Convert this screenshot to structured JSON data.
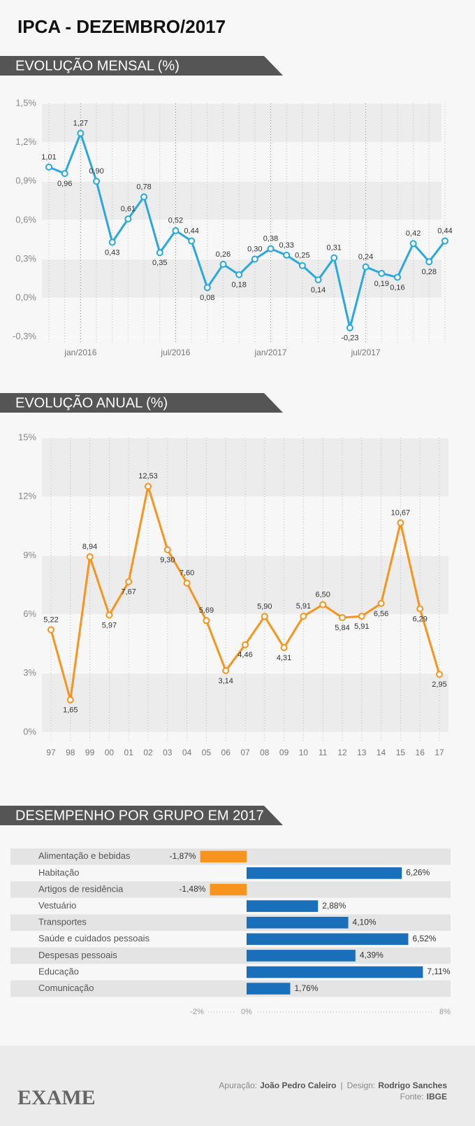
{
  "header": {
    "title": "IPCA - DEZEMBRO/2017"
  },
  "chart_data": [
    {
      "type": "line",
      "title": "EVOLUÇÃO MENSAL (%)",
      "categories": [
        null,
        null,
        "jan/2016",
        null,
        null,
        null,
        null,
        null,
        "jul/2016",
        null,
        null,
        null,
        null,
        null,
        "jan/2017",
        null,
        null,
        null,
        null,
        null,
        "jul/2017",
        null,
        null,
        null,
        null,
        null
      ],
      "values": [
        1.01,
        0.96,
        1.27,
        0.9,
        0.43,
        0.61,
        0.78,
        0.35,
        0.52,
        0.44,
        0.08,
        0.26,
        0.18,
        0.3,
        0.38,
        0.33,
        0.25,
        0.14,
        0.31,
        -0.23,
        0.24,
        0.19,
        0.16,
        0.42,
        0.28,
        0.44
      ],
      "value_labels": [
        "1,01",
        "0,96",
        "1,27",
        "0,90",
        "0,43",
        "0,61",
        "0,78",
        "0,35",
        "0,52",
        "0,44",
        "0,08",
        "0,26",
        "0,18",
        "0,30",
        "0,38",
        "0,33",
        "0,25",
        "0,14",
        "0,31",
        "-0,23",
        "0,24",
        "0,19",
        "0,16",
        "0,42",
        "0,28",
        "0,44"
      ],
      "color": "#29a8e0",
      "ylim": [
        -0.35,
        1.5
      ],
      "yticks": [
        {
          "value": -0.3,
          "label": "-0,3%"
        },
        {
          "value": 0,
          "label": "0,0%"
        },
        {
          "value": 0.3,
          "label": "0,3%"
        },
        {
          "value": 0.6,
          "label": "0,6%"
        },
        {
          "value": 0.9,
          "label": "0,9%"
        },
        {
          "value": 1.2,
          "label": "1,2%"
        },
        {
          "value": 1.5,
          "label": "1,5%"
        }
      ],
      "grid": true
    },
    {
      "type": "line",
      "title": "EVOLUÇÃO ANUAL (%)",
      "categories": [
        "97",
        "98",
        "99",
        "00",
        "01",
        "02",
        "03",
        "04",
        "05",
        "06",
        "07",
        "08",
        "09",
        "10",
        "11",
        "12",
        "13",
        "14",
        "15",
        "16",
        "17"
      ],
      "values": [
        5.22,
        1.65,
        8.94,
        5.97,
        7.67,
        12.53,
        9.3,
        7.6,
        5.69,
        3.14,
        4.46,
        5.9,
        4.31,
        5.91,
        6.5,
        5.84,
        5.91,
        6.56,
        10.67,
        6.29,
        2.95
      ],
      "value_labels": [
        "5,22",
        "1,65",
        "8,94",
        "5,97",
        "7,67",
        "12,53",
        "9,30",
        "7,60",
        "5,69",
        "3,14",
        "4,46",
        "5,90",
        "4,31",
        "5,91",
        "6,50",
        "5,84",
        "5,91",
        "6,56",
        "10,67",
        "6,29",
        "2,95"
      ],
      "color": "#f7941d",
      "ylim": [
        0,
        15
      ],
      "yticks": [
        {
          "value": 0,
          "label": "0%"
        },
        {
          "value": 3,
          "label": "3%"
        },
        {
          "value": 6,
          "label": "6%"
        },
        {
          "value": 9,
          "label": "9%"
        },
        {
          "value": 12,
          "label": "12%"
        },
        {
          "value": 15,
          "label": "15%"
        }
      ],
      "grid": true
    },
    {
      "type": "hbar",
      "title": "DESEMPENHO POR GRUPO EM 2017",
      "categories": [
        "Alimentação e bebidas",
        "Habitação",
        "Artigos de residência",
        "Vestuário",
        "Transportes",
        "Saúde e cuidados pessoais",
        "Despesas pessoais",
        "Educação",
        "Comunicação"
      ],
      "values": [
        -1.87,
        6.26,
        -1.48,
        2.88,
        4.1,
        6.52,
        4.39,
        7.11,
        1.76
      ],
      "value_labels": [
        "-1,87%",
        "6,26%",
        "-1,48%",
        "2,88%",
        "4,10%",
        "6,52%",
        "4,39%",
        "7,11%",
        "1,76%"
      ],
      "color": "#1a6fba",
      "negative_color": "#f7941d",
      "xlim": [
        -2,
        8
      ],
      "xticks": [
        {
          "value": -2,
          "label": "-2%"
        },
        {
          "value": 0,
          "label": "0%"
        },
        {
          "value": 8,
          "label": "8%"
        }
      ]
    }
  ],
  "footer": {
    "logo": "EXAME",
    "credits": [
      {
        "label": "Apuração:",
        "name": "João Pedro Caleiro"
      },
      {
        "label": "Design:",
        "name": "Rodrigo Sanches"
      }
    ],
    "separator": "|",
    "source": {
      "label": "Fonte:",
      "name": "IBGE"
    }
  }
}
